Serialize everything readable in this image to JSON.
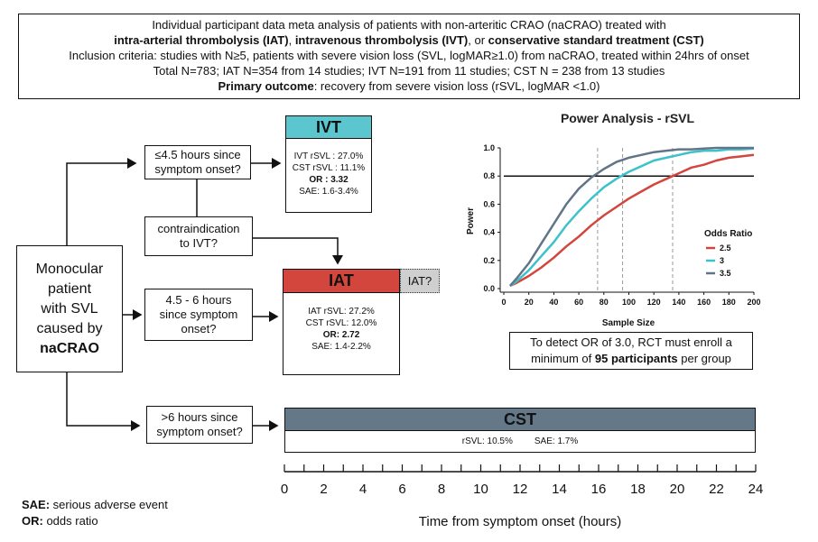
{
  "header": {
    "line1": "Individual participant data meta analysis of patients with non-arteritic CRAO (naCRAO) treated with",
    "line2": {
      "t1": "intra-arterial thrombolysis (IAT)",
      "s1": ", ",
      "t2": "intravenous thrombolysis (IVT)",
      "s2": ", or ",
      "t3": "conservative standard treatment (CST)"
    },
    "line3": "Inclusion criteria: studies with N≥5, patients with severe vision loss (SVL, logMAR≥1.0) from naCRAO, treated within 24hrs of onset",
    "line4": "Total N=783; IAT N=354 from 14 studies; IVT N=191 from 11 studies; CST N = 238 from 13 studies",
    "line5": {
      "label": "Primary outcome",
      "text": ": recovery from severe vision loss (rSVL, logMAR <1.0)"
    }
  },
  "patient": {
    "line1": "Monocular",
    "line2": "patient",
    "line3": "with SVL",
    "line4": "caused by",
    "line5": "naCRAO"
  },
  "questions": {
    "q1": {
      "l1": "≤4.5 hours since",
      "l2": "symptom onset?"
    },
    "contra": {
      "l1": "contraindication",
      "l2": "to IVT?"
    },
    "q2": {
      "l1": "4.5 - 6 hours",
      "l2": "since symptom",
      "l3": "onset?"
    },
    "q3": {
      "l1": ">6 hours since",
      "l2": "symptom onset?"
    }
  },
  "ivt": {
    "title": "IVT",
    "color": "#5cc6cf",
    "s1": "IVT rSVL : 27.0%",
    "s2": "CST rSVL : 11.1%",
    "s3": "OR : 3.32",
    "s4": "SAE: 1.6-3.4%"
  },
  "iat": {
    "title": "IAT",
    "color": "#d2463d",
    "s1": "IAT rSVL: 27.2%",
    "s2": "CST rSVL: 12.0%",
    "s3_label": "OR:",
    "s3_value": "2.72",
    "s4": "SAE: 1.4-2.2%",
    "alt": "IAT?"
  },
  "cst": {
    "title": "CST",
    "color": "#657887",
    "s1": "rSVL: 10.5%",
    "s2": "SAE: 1.7%"
  },
  "timeline": {
    "ticks": [
      "0",
      "2",
      "4",
      "6",
      "8",
      "10",
      "12",
      "14",
      "16",
      "18",
      "20",
      "22",
      "24"
    ],
    "label": "Time from symptom onset (hours)"
  },
  "footnotes": {
    "sae_label": "SAE:",
    "sae_text": " serious adverse event",
    "or_label": "OR:",
    "or_text": " odds ratio"
  },
  "power_note": {
    "l1": "To detect OR of 3.0, RCT must enroll a",
    "l2a": "minimum of ",
    "l2b": "95 participants",
    "l2c": " per group"
  },
  "chart_data": {
    "type": "line",
    "title": "Power Analysis - rSVL",
    "xlabel": "Sample Size",
    "ylabel": "Power",
    "xlim": [
      0,
      200
    ],
    "ylim": [
      0,
      1.0
    ],
    "x_ticks": [
      "0",
      "20",
      "40",
      "60",
      "80",
      "100",
      "120",
      "140",
      "160",
      "180",
      "200"
    ],
    "y_ticks": [
      "0.0",
      "0.2",
      "0.4",
      "0.6",
      "0.8",
      "1.0"
    ],
    "legend_title": "Odds Ratio",
    "legend_position": "right",
    "hline": 0.8,
    "vlines": [
      75,
      95,
      135
    ],
    "series": [
      {
        "name": "2.5",
        "color": "#d2463d",
        "x": [
          5,
          10,
          20,
          30,
          40,
          50,
          60,
          70,
          80,
          90,
          100,
          110,
          120,
          130,
          140,
          150,
          160,
          170,
          180,
          190,
          200
        ],
        "y": [
          0.02,
          0.04,
          0.09,
          0.15,
          0.22,
          0.3,
          0.37,
          0.45,
          0.52,
          0.58,
          0.64,
          0.69,
          0.74,
          0.78,
          0.82,
          0.86,
          0.88,
          0.91,
          0.93,
          0.94,
          0.95
        ]
      },
      {
        "name": "3",
        "color": "#3cc2ca",
        "x": [
          5,
          10,
          20,
          30,
          40,
          50,
          60,
          70,
          80,
          90,
          100,
          110,
          120,
          130,
          140,
          150,
          160,
          170,
          180,
          190,
          200
        ],
        "y": [
          0.02,
          0.05,
          0.13,
          0.23,
          0.33,
          0.45,
          0.55,
          0.64,
          0.72,
          0.78,
          0.83,
          0.87,
          0.91,
          0.93,
          0.95,
          0.97,
          0.98,
          0.98,
          0.99,
          0.99,
          0.995
        ]
      },
      {
        "name": "3.5",
        "color": "#627487",
        "x": [
          5,
          10,
          20,
          30,
          40,
          50,
          60,
          70,
          80,
          90,
          100,
          110,
          120,
          130,
          140,
          150,
          160,
          170,
          180,
          190,
          200
        ],
        "y": [
          0.02,
          0.07,
          0.18,
          0.32,
          0.46,
          0.6,
          0.71,
          0.79,
          0.85,
          0.9,
          0.93,
          0.95,
          0.97,
          0.98,
          0.99,
          0.99,
          0.995,
          1.0,
          1.0,
          1.0,
          1.0
        ]
      }
    ]
  }
}
